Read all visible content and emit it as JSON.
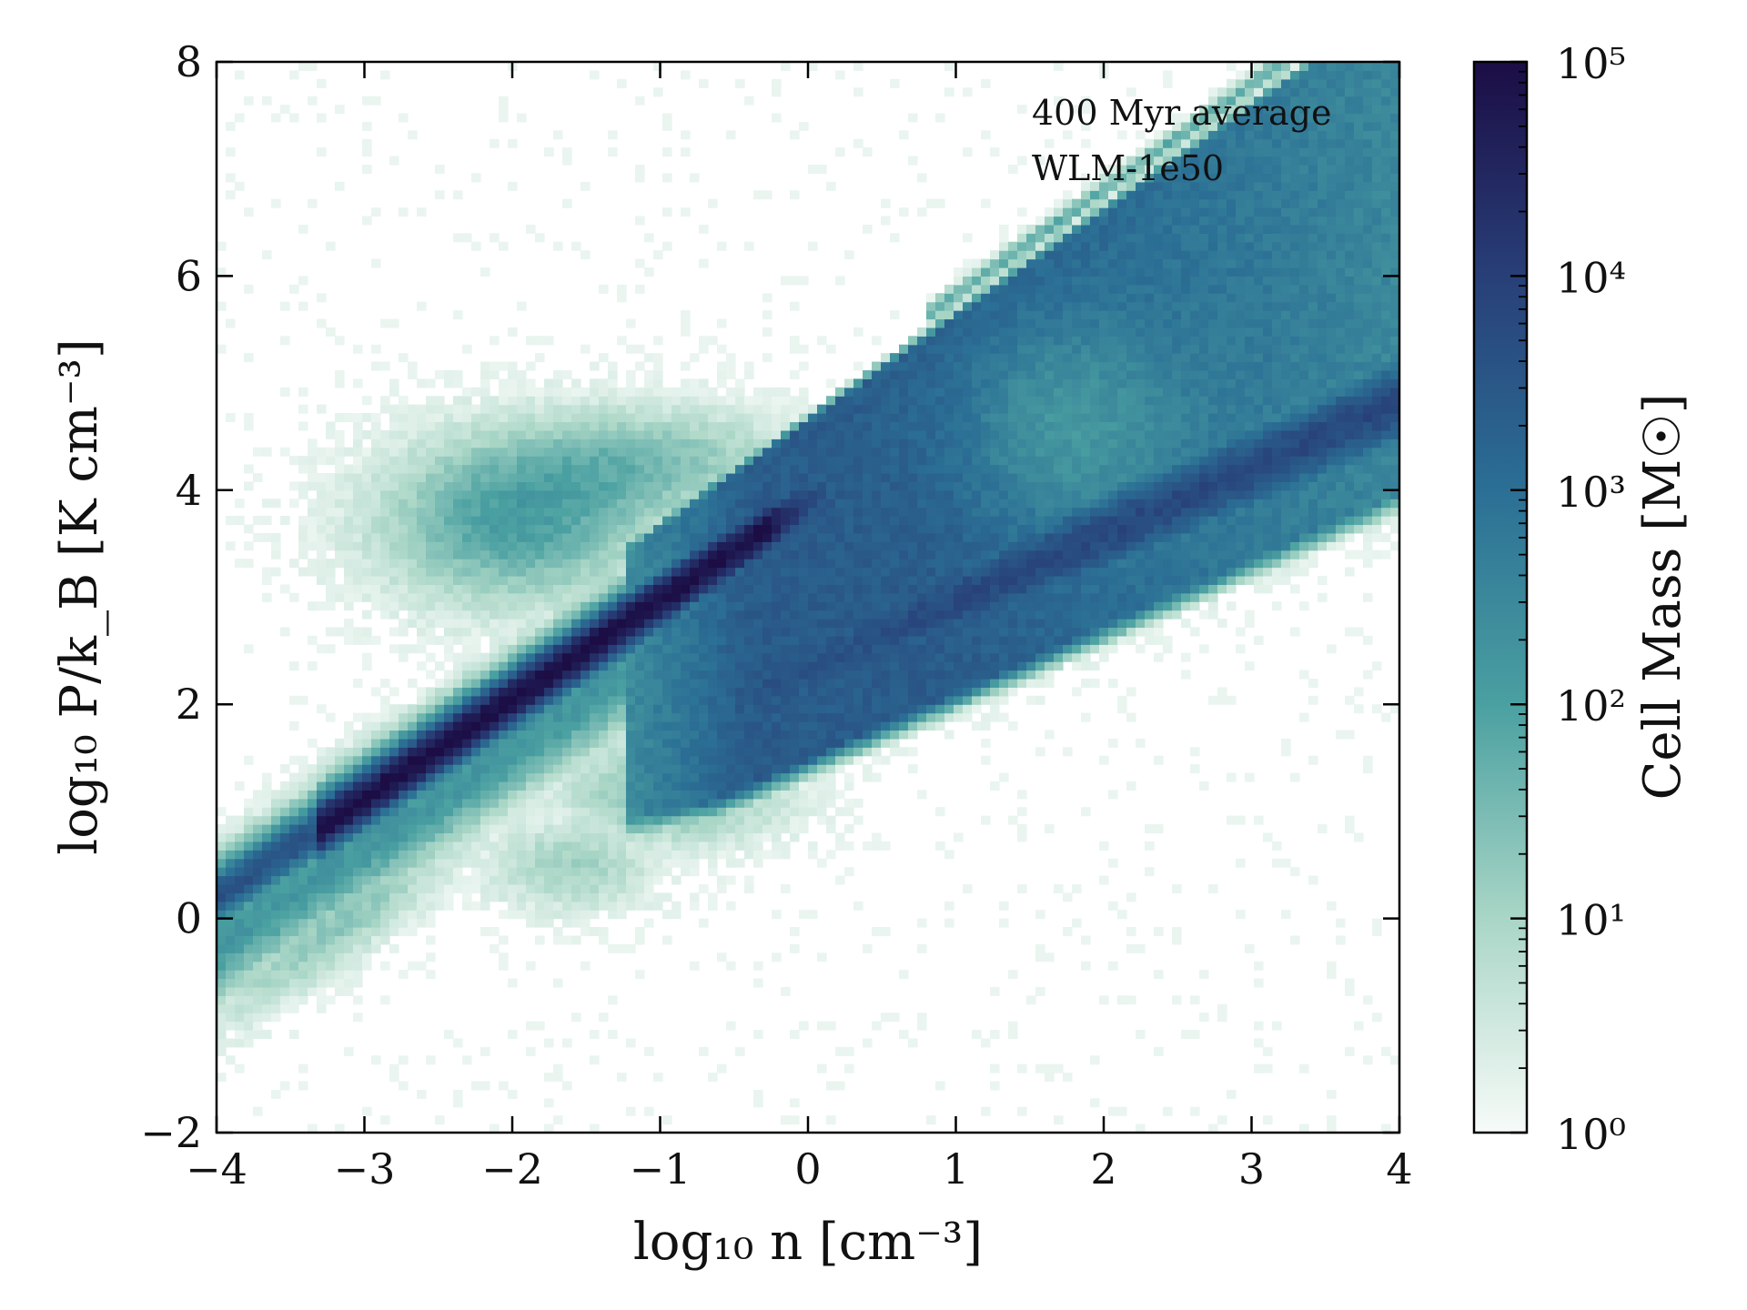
{
  "chart_data": {
    "type": "heatmap",
    "title": "",
    "xlabel": "log₁₀ n [cm⁻³]",
    "ylabel": "log₁₀ P/k_B [K cm⁻³]",
    "xlim": [
      -4,
      4
    ],
    "ylim": [
      -2,
      8
    ],
    "xticks": [
      -4,
      -3,
      -2,
      -1,
      0,
      1,
      2,
      3,
      4
    ],
    "yticks": [
      -2,
      0,
      2,
      4,
      6,
      8
    ],
    "xtick_labels": [
      "−4",
      "−3",
      "−2",
      "−1",
      "0",
      "1",
      "2",
      "3",
      "4"
    ],
    "ytick_labels": [
      "−2",
      "0",
      "2",
      "4",
      "6",
      "8"
    ],
    "annotations": [
      "400 Myr average",
      "WLM-1e50"
    ],
    "colorbar": {
      "label": "Cell Mass [M☉]",
      "scale": "log",
      "range": [
        1,
        100000
      ],
      "ticks": [
        1,
        10,
        100,
        1000,
        10000,
        100000
      ],
      "tick_labels": [
        "10⁰",
        "10¹",
        "10²",
        "10³",
        "10⁴",
        "10⁵"
      ],
      "colors": [
        "#f7fbf8",
        "#a9d6c6",
        "#4aa0a1",
        "#2b6f95",
        "#283f78",
        "#1c0d45"
      ]
    },
    "features": [
      {
        "name": "dense ridge",
        "n_from": -4,
        "n_to": 0,
        "P_from": 0.2,
        "P_to": 3.9,
        "peak_log_mass": 5
      },
      {
        "name": "hot diffuse cloud",
        "n_center": -2,
        "P_center": 3.7,
        "peak_log_mass": 2
      },
      {
        "name": "cold branch",
        "n_from": -1,
        "n_to": 4,
        "P_from": 1.3,
        "P_to": 5.8,
        "peak_log_mass": 3.5
      },
      {
        "name": "upper envelope",
        "n_from": 0,
        "n_to": 4,
        "P_from": 4.5,
        "P_to": 8,
        "peak_log_mass": 1.5
      }
    ]
  }
}
